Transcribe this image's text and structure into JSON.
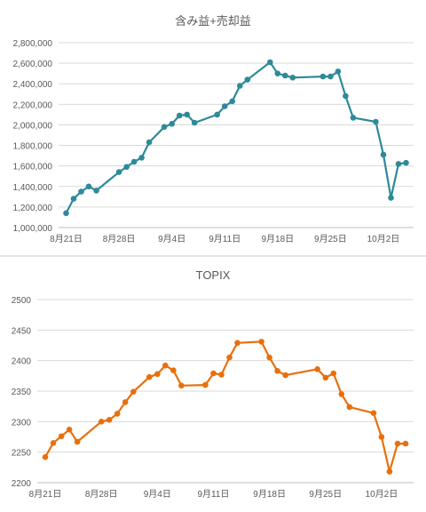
{
  "chart_data": [
    {
      "type": "line",
      "title": "含み益+売却益",
      "xlabel": "",
      "ylabel": "",
      "x_tick_labels": [
        "8月21日",
        "8月28日",
        "9月4日",
        "9月11日",
        "9月18日",
        "9月25日",
        "10月2日"
      ],
      "y_tick_labels": [
        "1,000,000",
        "1,200,000",
        "1,400,000",
        "1,600,000",
        "1,800,000",
        "2,000,000",
        "2,200,000",
        "2,400,000",
        "2,600,000",
        "2,800,000"
      ],
      "ylim": [
        1000000,
        2800000
      ],
      "xlim": [
        "2020-08-20",
        "2020-10-06"
      ],
      "grid": true,
      "color": "#2e8a99",
      "series": [
        {
          "x": [
            "2020-08-21",
            "2020-08-22",
            "2020-08-23",
            "2020-08-24",
            "2020-08-25",
            "2020-08-28",
            "2020-08-29",
            "2020-08-30",
            "2020-08-31",
            "2020-09-01",
            "2020-09-03",
            "2020-09-04",
            "2020-09-05",
            "2020-09-06",
            "2020-09-07",
            "2020-09-10",
            "2020-09-11",
            "2020-09-12",
            "2020-09-13",
            "2020-09-14",
            "2020-09-17",
            "2020-09-18",
            "2020-09-19",
            "2020-09-20",
            "2020-09-24",
            "2020-09-25",
            "2020-09-26",
            "2020-09-27",
            "2020-09-28",
            "2020-10-01",
            "2020-10-02",
            "2020-10-03",
            "2020-10-04",
            "2020-10-05"
          ],
          "values": [
            1140000,
            1280000,
            1350000,
            1400000,
            1360000,
            1540000,
            1590000,
            1640000,
            1680000,
            1830000,
            1980000,
            2010000,
            2090000,
            2100000,
            2020000,
            2100000,
            2180000,
            2230000,
            2380000,
            2440000,
            2610000,
            2500000,
            2480000,
            2460000,
            2470000,
            2470000,
            2520000,
            2280000,
            2070000,
            2030000,
            1710000,
            1290000,
            1620000,
            1630000
          ]
        }
      ]
    },
    {
      "type": "line",
      "title": "TOPIX",
      "xlabel": "",
      "ylabel": "",
      "x_tick_labels": [
        "8月21日",
        "8月28日",
        "9月4日",
        "9月11日",
        "9月18日",
        "9月25日",
        "10月2日"
      ],
      "y_tick_labels": [
        "2200",
        "2250",
        "2300",
        "2350",
        "2400",
        "2450",
        "2500"
      ],
      "ylim": [
        2200,
        2500
      ],
      "xlim": [
        "2020-08-20",
        "2020-10-06"
      ],
      "grid": true,
      "color": "#e8700c",
      "series": [
        {
          "x": [
            "2020-08-21",
            "2020-08-22",
            "2020-08-23",
            "2020-08-24",
            "2020-08-25",
            "2020-08-28",
            "2020-08-29",
            "2020-08-30",
            "2020-08-31",
            "2020-09-01",
            "2020-09-03",
            "2020-09-04",
            "2020-09-05",
            "2020-09-06",
            "2020-09-07",
            "2020-09-10",
            "2020-09-11",
            "2020-09-12",
            "2020-09-13",
            "2020-09-14",
            "2020-09-17",
            "2020-09-18",
            "2020-09-19",
            "2020-09-20",
            "2020-09-24",
            "2020-09-25",
            "2020-09-26",
            "2020-09-27",
            "2020-09-28",
            "2020-10-01",
            "2020-10-02",
            "2020-10-03",
            "2020-10-04",
            "2020-10-05"
          ],
          "values": [
            2242,
            2265,
            2276,
            2287,
            2267,
            2300,
            2303,
            2313,
            2332,
            2349,
            2373,
            2378,
            2392,
            2384,
            2359,
            2360,
            2379,
            2377,
            2405,
            2429,
            2431,
            2405,
            2383,
            2376,
            2386,
            2372,
            2379,
            2345,
            2324,
            2314,
            2275,
            2218,
            2264,
            2264
          ]
        }
      ]
    }
  ]
}
